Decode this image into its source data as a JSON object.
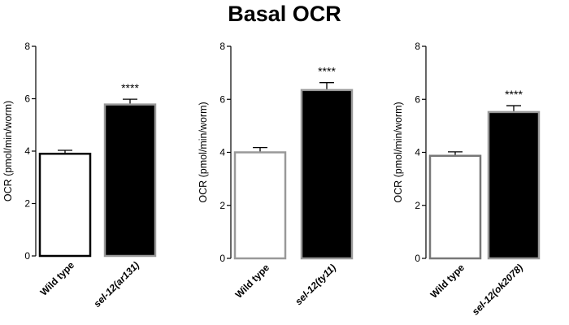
{
  "title": "Basal OCR",
  "chart_data": [
    {
      "type": "bar",
      "ylabel": "OCR (pmol/min/worm)",
      "ylim": [
        0,
        8
      ],
      "yticks": [
        "0",
        "2",
        "4",
        "6",
        "8"
      ],
      "categories": [
        {
          "plain": "Wild type",
          "italic_prefix": "",
          "paren": ""
        },
        {
          "plain": "",
          "italic_prefix": "sel-12",
          "paren": "ar131"
        }
      ],
      "category_labels": [
        "Wild type",
        "sel-12(ar131)"
      ],
      "values": [
        3.9,
        5.78
      ],
      "errors": [
        0.13,
        0.2
      ],
      "fill_colors": [
        "#ffffff",
        "#000000"
      ],
      "edge_colors": [
        "#000000",
        "#999999"
      ],
      "annotation": "****"
    },
    {
      "type": "bar",
      "ylabel": "OCR (pmol/min/worm)",
      "ylim": [
        0,
        8
      ],
      "yticks": [
        "0",
        "2",
        "4",
        "6",
        "8"
      ],
      "categories": [
        {
          "plain": "Wild type",
          "italic_prefix": "",
          "paren": ""
        },
        {
          "plain": "",
          "italic_prefix": "sel-12",
          "paren": "ty11"
        }
      ],
      "category_labels": [
        "Wild type",
        "sel-12(ty11)"
      ],
      "values": [
        4.0,
        6.35
      ],
      "errors": [
        0.18,
        0.28
      ],
      "fill_colors": [
        "#ffffff",
        "#000000"
      ],
      "edge_colors": [
        "#999999",
        "#999999"
      ],
      "annotation": "****"
    },
    {
      "type": "bar",
      "ylabel": "OCR (pmol/min/worm)",
      "ylim": [
        0,
        8
      ],
      "yticks": [
        "0",
        "2",
        "4",
        "6",
        "8"
      ],
      "categories": [
        {
          "plain": "Wild type",
          "italic_prefix": "",
          "paren": ""
        },
        {
          "plain": "",
          "italic_prefix": "sel-12",
          "paren": "ok2078"
        }
      ],
      "category_labels": [
        "Wild type",
        "sel-12(ok2078)"
      ],
      "values": [
        3.87,
        5.52
      ],
      "errors": [
        0.15,
        0.24
      ],
      "fill_colors": [
        "#ffffff",
        "#000000"
      ],
      "edge_colors": [
        "#777777",
        "#999999"
      ],
      "annotation": "****"
    }
  ]
}
